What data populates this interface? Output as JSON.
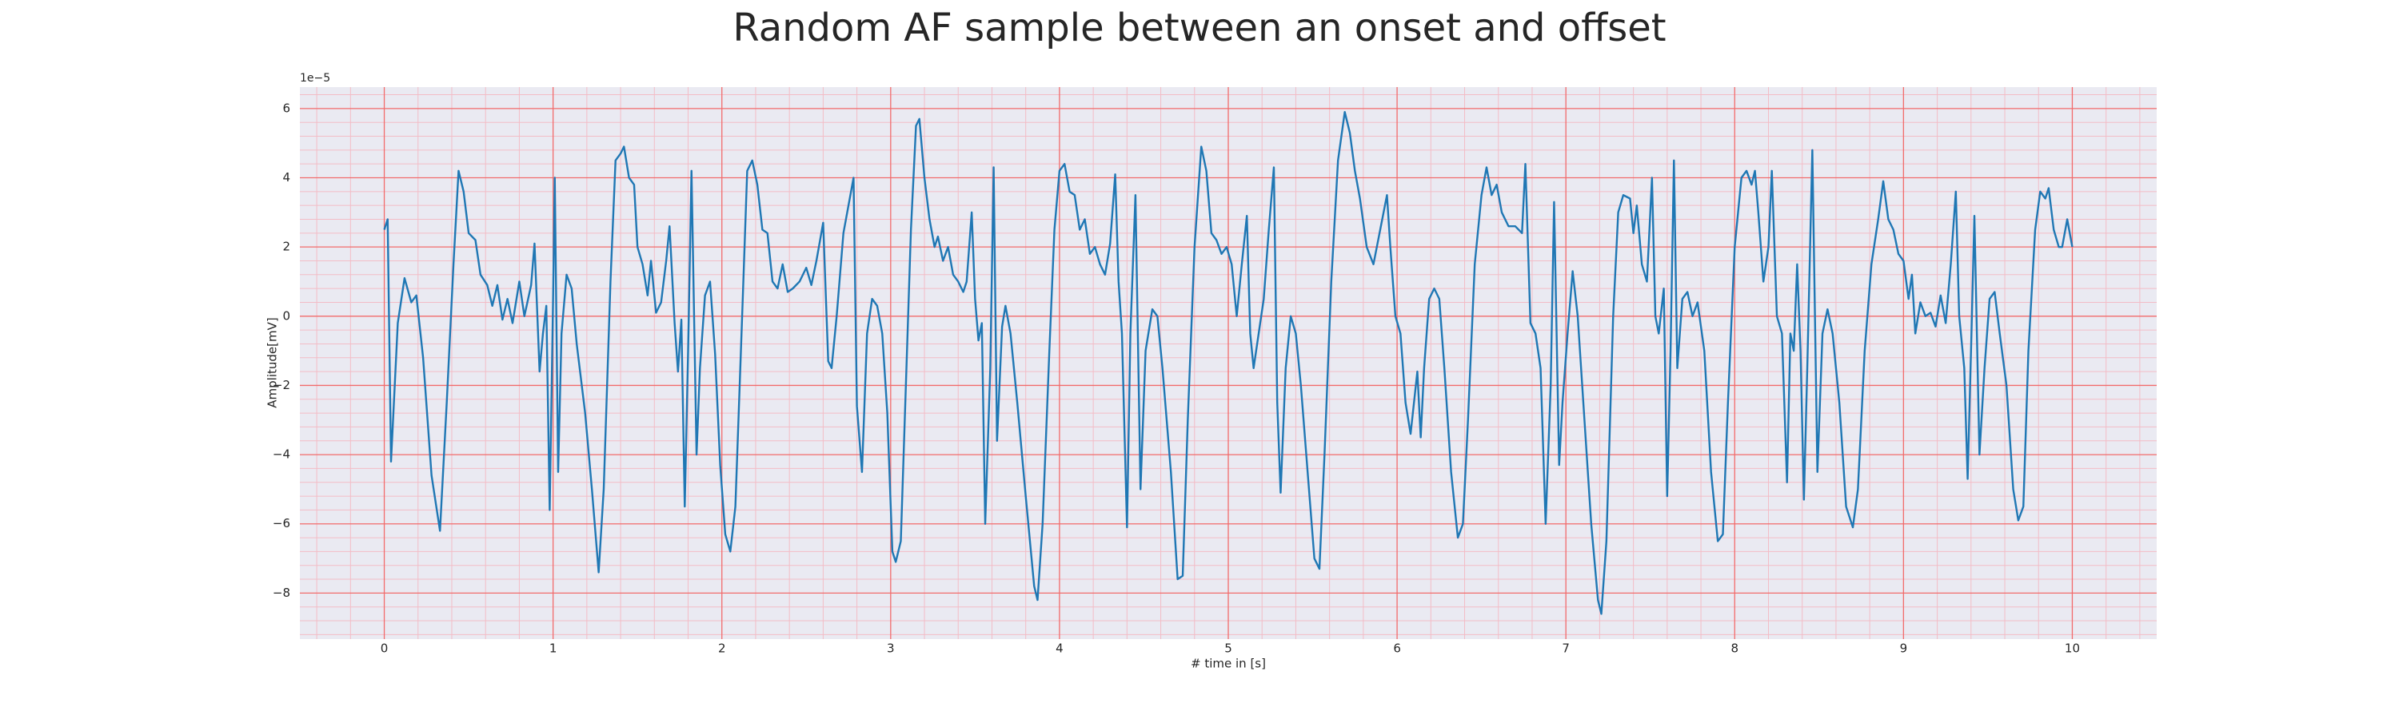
{
  "chart_data": {
    "type": "line",
    "title": "Random AF sample between an onset and offset",
    "xlabel": "# time in [s]",
    "ylabel": "Amplitude[mV]",
    "offset_label": "1e−5",
    "color": "#1f77b4",
    "background": "#eaeaf2",
    "grid": true,
    "grid_color": "#f26b6b",
    "minor_grid_color": "#f3bcc6",
    "xlim": [
      -0.5,
      10.5
    ],
    "ylim": [
      -9.33,
      6.62
    ],
    "xticks": [
      0,
      1,
      2,
      3,
      4,
      5,
      6,
      7,
      8,
      9,
      10
    ],
    "yticks": [
      {
        "value": -8,
        "label": "−8"
      },
      {
        "value": -6,
        "label": "−6"
      },
      {
        "value": -4,
        "label": "−4"
      },
      {
        "value": -2,
        "label": "−2"
      },
      0,
      2,
      4,
      6
    ],
    "xminorticks": [
      -0.4,
      -0.2,
      0.2,
      0.4,
      0.6,
      0.8,
      1.2,
      1.4,
      1.6,
      1.8,
      2.2,
      2.4,
      2.6,
      2.8,
      3.2,
      3.4,
      3.6,
      3.8,
      4.2,
      4.4,
      4.6,
      4.8,
      5.2,
      5.4,
      5.6,
      5.8,
      6.2,
      6.4,
      6.6,
      6.8,
      7.2,
      7.4,
      7.6,
      7.8,
      8.2,
      8.4,
      8.6,
      8.8,
      9.2,
      9.4,
      9.6,
      9.8,
      10.2,
      10.4
    ],
    "yminorticks": [
      -9.2,
      -8.8,
      -8.4,
      -7.6,
      -7.2,
      -6.8,
      -6.4,
      -5.6,
      -5.2,
      -4.8,
      -4.4,
      -3.6,
      -3.2,
      -2.8,
      -2.4,
      -1.6,
      -1.2,
      -0.8,
      -0.4,
      0.4,
      0.8,
      1.2,
      1.6,
      2.4,
      2.8,
      3.2,
      3.6,
      4.4,
      4.8,
      5.2,
      5.6,
      6.4
    ],
    "x": [
      0.0,
      0.02,
      0.04,
      0.08,
      0.12,
      0.16,
      0.19,
      0.23,
      0.28,
      0.33,
      0.37,
      0.41,
      0.44,
      0.47,
      0.5,
      0.54,
      0.57,
      0.61,
      0.64,
      0.67,
      0.7,
      0.73,
      0.76,
      0.8,
      0.83,
      0.87,
      0.89,
      0.92,
      0.94,
      0.96,
      0.98,
      1.0,
      1.01,
      1.03,
      1.05,
      1.08,
      1.11,
      1.14,
      1.19,
      1.23,
      1.27,
      1.3,
      1.34,
      1.37,
      1.4,
      1.42,
      1.45,
      1.48,
      1.5,
      1.53,
      1.56,
      1.58,
      1.61,
      1.64,
      1.67,
      1.69,
      1.72,
      1.74,
      1.76,
      1.78,
      1.8,
      1.82,
      1.85,
      1.87,
      1.9,
      1.93,
      1.96,
      1.99,
      2.02,
      2.05,
      2.08,
      2.12,
      2.15,
      2.18,
      2.21,
      2.24,
      2.27,
      2.3,
      2.33,
      2.36,
      2.39,
      2.42,
      2.46,
      2.5,
      2.53,
      2.56,
      2.6,
      2.63,
      2.65,
      2.68,
      2.72,
      2.78,
      2.8,
      2.83,
      2.86,
      2.89,
      2.92,
      2.95,
      2.98,
      3.01,
      3.03,
      3.06,
      3.09,
      3.12,
      3.15,
      3.17,
      3.2,
      3.23,
      3.26,
      3.28,
      3.31,
      3.34,
      3.37,
      3.4,
      3.43,
      3.45,
      3.48,
      3.5,
      3.52,
      3.54,
      3.56,
      3.59,
      3.61,
      3.63,
      3.66,
      3.68,
      3.71,
      3.75,
      3.8,
      3.85,
      3.87,
      3.9,
      3.94,
      3.97,
      4.0,
      4.03,
      4.06,
      4.09,
      4.12,
      4.15,
      4.18,
      4.21,
      4.24,
      4.27,
      4.3,
      4.33,
      4.35,
      4.37,
      4.4,
      4.42,
      4.45,
      4.48,
      4.51,
      4.55,
      4.58,
      4.61,
      4.66,
      4.7,
      4.73,
      4.76,
      4.8,
      4.84,
      4.87,
      4.9,
      4.93,
      4.96,
      4.99,
      5.02,
      5.05,
      5.08,
      5.11,
      5.13,
      5.15,
      5.18,
      5.21,
      5.24,
      5.27,
      5.29,
      5.31,
      5.34,
      5.37,
      5.4,
      5.43,
      5.47,
      5.51,
      5.54,
      5.57,
      5.61,
      5.65,
      5.69,
      5.72,
      5.75,
      5.78,
      5.82,
      5.86,
      5.9,
      5.94,
      5.96,
      5.99,
      6.02,
      6.05,
      6.08,
      6.1,
      6.12,
      6.14,
      6.16,
      6.19,
      6.22,
      6.25,
      6.28,
      6.32,
      6.36,
      6.39,
      6.42,
      6.46,
      6.5,
      6.53,
      6.56,
      6.59,
      6.62,
      6.66,
      6.7,
      6.74,
      6.76,
      6.79,
      6.82,
      6.85,
      6.88,
      6.91,
      6.93,
      6.96,
      6.98,
      7.01,
      7.04,
      7.07,
      7.11,
      7.15,
      7.19,
      7.21,
      7.24,
      7.28,
      7.31,
      7.34,
      7.38,
      7.4,
      7.42,
      7.45,
      7.48,
      7.51,
      7.53,
      7.55,
      7.58,
      7.6,
      7.62,
      7.64,
      7.66,
      7.69,
      7.72,
      7.75,
      7.78,
      7.82,
      7.86,
      7.9,
      7.93,
      7.96,
      8.0,
      8.04,
      8.07,
      8.1,
      8.12,
      8.14,
      8.17,
      8.2,
      8.22,
      8.25,
      8.28,
      8.31,
      8.33,
      8.35,
      8.37,
      8.39,
      8.41,
      8.43,
      8.46,
      8.49,
      8.52,
      8.55,
      8.58,
      8.62,
      8.66,
      8.7,
      8.73,
      8.77,
      8.81,
      8.85,
      8.88,
      8.91,
      8.94,
      8.97,
      9.0,
      9.03,
      9.05,
      9.07,
      9.1,
      9.13,
      9.16,
      9.19,
      9.22,
      9.25,
      9.28,
      9.31,
      9.33,
      9.36,
      9.38,
      9.4,
      9.42,
      9.45,
      9.48,
      9.51,
      9.54,
      9.57,
      9.61,
      9.65,
      9.68,
      9.71,
      9.74,
      9.78,
      9.81,
      9.84,
      9.86,
      9.89,
      9.92,
      9.94,
      9.97,
      10.0
    ],
    "values": [
      2.5,
      2.8,
      -4.2,
      -0.2,
      1.1,
      0.4,
      0.6,
      -1.2,
      -4.6,
      -6.2,
      -2.5,
      1.5,
      4.2,
      3.6,
      2.4,
      2.2,
      1.2,
      0.9,
      0.3,
      0.9,
      -0.1,
      0.5,
      -0.2,
      1.0,
      0.0,
      0.9,
      2.1,
      -1.6,
      -0.5,
      0.3,
      -5.6,
      0.5,
      4.0,
      -4.5,
      -0.5,
      1.2,
      0.8,
      -0.8,
      -2.8,
      -5.0,
      -7.4,
      -5.0,
      1.0,
      4.5,
      4.7,
      4.9,
      4.0,
      3.8,
      2.0,
      1.5,
      0.6,
      1.6,
      0.1,
      0.4,
      1.6,
      2.6,
      -0.2,
      -1.6,
      -0.1,
      -5.5,
      -1.0,
      4.2,
      -4.0,
      -1.5,
      0.6,
      1.0,
      -1.1,
      -4.3,
      -6.3,
      -6.8,
      -5.5,
      0.0,
      4.2,
      4.5,
      3.8,
      2.5,
      2.4,
      1.0,
      0.8,
      1.5,
      0.7,
      0.8,
      1.0,
      1.4,
      0.9,
      1.6,
      2.7,
      -1.3,
      -1.5,
      0.0,
      2.4,
      4.0,
      -2.6,
      -4.5,
      -0.5,
      0.5,
      0.3,
      -0.5,
      -2.8,
      -6.8,
      -7.1,
      -6.5,
      -2.0,
      2.5,
      5.5,
      5.7,
      4.0,
      2.8,
      2.0,
      2.3,
      1.6,
      2.0,
      1.2,
      1.0,
      0.7,
      1.0,
      3.0,
      0.5,
      -0.7,
      -0.2,
      -6.0,
      -1.5,
      4.3,
      -3.6,
      -0.3,
      0.3,
      -0.5,
      -2.5,
      -5.2,
      -7.8,
      -8.2,
      -6.0,
      -1.0,
      2.5,
      4.2,
      4.4,
      3.6,
      3.5,
      2.5,
      2.8,
      1.8,
      2.0,
      1.5,
      1.2,
      2.1,
      4.1,
      1.0,
      -0.5,
      -6.1,
      -0.5,
      3.5,
      -5.0,
      -1.0,
      0.2,
      0.0,
      -1.5,
      -4.5,
      -7.6,
      -7.5,
      -3.0,
      2.0,
      4.9,
      4.2,
      2.4,
      2.2,
      1.8,
      2.0,
      1.5,
      0.0,
      1.5,
      2.9,
      -0.5,
      -1.5,
      -0.5,
      0.5,
      2.5,
      4.3,
      -2.5,
      -5.1,
      -1.5,
      0.0,
      -0.5,
      -2.0,
      -4.5,
      -7.0,
      -7.3,
      -4.0,
      1.0,
      4.5,
      5.9,
      5.3,
      4.2,
      3.4,
      2.0,
      1.5,
      2.5,
      3.5,
      2.0,
      0.0,
      -0.5,
      -2.5,
      -3.4,
      -2.5,
      -1.6,
      -3.5,
      -1.5,
      0.5,
      0.8,
      0.5,
      -1.5,
      -4.5,
      -6.4,
      -6.0,
      -3.0,
      1.5,
      3.5,
      4.3,
      3.5,
      3.8,
      3.0,
      2.6,
      2.6,
      2.4,
      4.4,
      -0.2,
      -0.5,
      -1.5,
      -6.0,
      -2.0,
      3.3,
      -4.3,
      -2.5,
      -0.5,
      1.3,
      0.0,
      -3.0,
      -6.0,
      -8.2,
      -8.6,
      -6.5,
      0.0,
      3.0,
      3.5,
      3.4,
      2.4,
      3.2,
      1.5,
      1.0,
      4.0,
      0.0,
      -0.5,
      0.8,
      -5.2,
      -1.0,
      4.5,
      -1.5,
      0.5,
      0.7,
      0.0,
      0.4,
      -1.0,
      -4.5,
      -6.5,
      -6.3,
      -2.5,
      2.0,
      4.0,
      4.2,
      3.8,
      4.2,
      3.0,
      1.0,
      2.0,
      4.2,
      0.0,
      -0.5,
      -4.8,
      -0.5,
      -1.0,
      1.5,
      -1.0,
      -5.3,
      -1.5,
      4.8,
      -4.5,
      -0.5,
      0.2,
      -0.5,
      -2.5,
      -5.5,
      -6.1,
      -5.0,
      -1.0,
      1.5,
      2.8,
      3.9,
      2.8,
      2.5,
      1.8,
      1.6,
      0.5,
      1.2,
      -0.5,
      0.4,
      0.0,
      0.1,
      -0.3,
      0.6,
      -0.2,
      1.5,
      3.6,
      0.0,
      -1.5,
      -4.7,
      -1.0,
      2.9,
      -4.0,
      -1.5,
      0.5,
      0.7,
      -0.5,
      -2.0,
      -5.0,
      -5.9,
      -5.5,
      -1.0,
      2.5,
      3.6,
      3.4,
      3.7,
      2.5,
      2.0,
      2.0,
      2.8,
      2.0
    ]
  }
}
